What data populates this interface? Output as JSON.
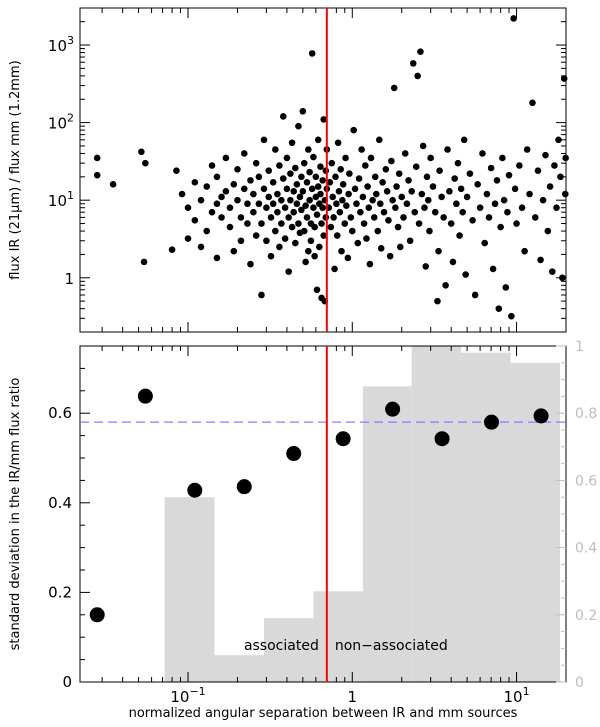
{
  "chart_data": [
    {
      "type": "scatter",
      "ylabel": "flux IR (21μm) / flux mm (1.2mm)",
      "xscale": "log",
      "yscale": "log",
      "xlim": [
        0.022,
        20
      ],
      "ylim": [
        0.2,
        3000
      ],
      "x_ticks": [
        {
          "v": 0.1,
          "label": "10",
          "exp": "−1"
        },
        {
          "v": 1,
          "label": "1",
          "exp": ""
        },
        {
          "v": 10,
          "label": "10",
          "exp": "1"
        }
      ],
      "y_ticks": [
        {
          "v": 1,
          "label": "1",
          "exp": ""
        },
        {
          "v": 10,
          "label": "10",
          "exp": "1"
        },
        {
          "v": 100,
          "label": "10",
          "exp": "2"
        },
        {
          "v": 1000,
          "label": "10",
          "exp": "3"
        }
      ],
      "vline_x": 0.7,
      "vline_color": "#ff0000",
      "points": [
        [
          0.028,
          35
        ],
        [
          0.028,
          21
        ],
        [
          0.035,
          16
        ],
        [
          0.052,
          42
        ],
        [
          0.055,
          30
        ],
        [
          0.054,
          1.6
        ],
        [
          0.08,
          2.3
        ],
        [
          0.085,
          24
        ],
        [
          0.092,
          12
        ],
        [
          0.1,
          8
        ],
        [
          0.1,
          3.2
        ],
        [
          0.11,
          17
        ],
        [
          0.11,
          5.5
        ],
        [
          0.12,
          2.5
        ],
        [
          0.12,
          10
        ],
        [
          0.13,
          15
        ],
        [
          0.13,
          4
        ],
        [
          0.14,
          28
        ],
        [
          0.14,
          7
        ],
        [
          0.15,
          20
        ],
        [
          0.15,
          9
        ],
        [
          0.15,
          1.8
        ],
        [
          0.16,
          11
        ],
        [
          0.16,
          6
        ],
        [
          0.17,
          35
        ],
        [
          0.17,
          13
        ],
        [
          0.18,
          4.5
        ],
        [
          0.18,
          8
        ],
        [
          0.19,
          16
        ],
        [
          0.19,
          2.2
        ],
        [
          0.2,
          10
        ],
        [
          0.2,
          25
        ],
        [
          0.21,
          6
        ],
        [
          0.21,
          3
        ],
        [
          0.22,
          14
        ],
        [
          0.22,
          40
        ],
        [
          0.23,
          9
        ],
        [
          0.23,
          5
        ],
        [
          0.24,
          18
        ],
        [
          0.24,
          1.5
        ],
        [
          0.25,
          12
        ],
        [
          0.25,
          7
        ],
        [
          0.26,
          3.5
        ],
        [
          0.26,
          30
        ],
        [
          0.27,
          9
        ],
        [
          0.27,
          20
        ],
        [
          0.28,
          0.6
        ],
        [
          0.28,
          5
        ],
        [
          0.29,
          14
        ],
        [
          0.29,
          60
        ],
        [
          0.3,
          8
        ],
        [
          0.3,
          3
        ],
        [
          0.31,
          24
        ],
        [
          0.31,
          11
        ],
        [
          0.32,
          6
        ],
        [
          0.32,
          1.9
        ],
        [
          0.33,
          17
        ],
        [
          0.33,
          9
        ],
        [
          0.34,
          45
        ],
        [
          0.34,
          4
        ],
        [
          0.35,
          12
        ],
        [
          0.35,
          7
        ],
        [
          0.36,
          28
        ],
        [
          0.36,
          2.5
        ],
        [
          0.37,
          10
        ],
        [
          0.37,
          5
        ],
        [
          0.38,
          19
        ],
        [
          0.38,
          120
        ],
        [
          0.39,
          8
        ],
        [
          0.39,
          3.2
        ],
        [
          0.4,
          14
        ],
        [
          0.4,
          35
        ],
        [
          0.41,
          6
        ],
        [
          0.41,
          1.2
        ],
        [
          0.42,
          22
        ],
        [
          0.42,
          10
        ],
        [
          0.43,
          4.5
        ],
        [
          0.43,
          55
        ],
        [
          0.44,
          13
        ],
        [
          0.44,
          7
        ],
        [
          0.45,
          26
        ],
        [
          0.45,
          2.8
        ],
        [
          0.46,
          9
        ],
        [
          0.46,
          16
        ],
        [
          0.47,
          5
        ],
        [
          0.47,
          90
        ],
        [
          0.48,
          11
        ],
        [
          0.48,
          3.8
        ],
        [
          0.49,
          20
        ],
        [
          0.49,
          7.5
        ],
        [
          0.5,
          140
        ],
        [
          0.5,
          13
        ],
        [
          0.51,
          4
        ],
        [
          0.51,
          30
        ],
        [
          0.52,
          8.5
        ],
        [
          0.52,
          1.6
        ],
        [
          0.53,
          17
        ],
        [
          0.53,
          6
        ],
        [
          0.54,
          2.2
        ],
        [
          0.54,
          45
        ],
        [
          0.55,
          10
        ],
        [
          0.55,
          23
        ],
        [
          0.56,
          5
        ],
        [
          0.56,
          3
        ],
        [
          0.57,
          14
        ],
        [
          0.57,
          780
        ],
        [
          0.58,
          8
        ],
        [
          0.58,
          36
        ],
        [
          0.59,
          4.5
        ],
        [
          0.59,
          1.9
        ],
        [
          0.6,
          11
        ],
        [
          0.6,
          20
        ],
        [
          0.61,
          6.5
        ],
        [
          0.61,
          0.7
        ],
        [
          0.62,
          15
        ],
        [
          0.62,
          60
        ],
        [
          0.63,
          9
        ],
        [
          0.63,
          2.5
        ],
        [
          0.64,
          27
        ],
        [
          0.64,
          12
        ],
        [
          0.65,
          5
        ],
        [
          0.65,
          0.55
        ],
        [
          0.66,
          8
        ],
        [
          0.66,
          18
        ],
        [
          0.67,
          110
        ],
        [
          0.67,
          3.5
        ],
        [
          0.68,
          10
        ],
        [
          0.68,
          0.5
        ],
        [
          0.69,
          24
        ],
        [
          0.69,
          6
        ],
        [
          0.7,
          45
        ],
        [
          0.7,
          14
        ],
        [
          0.72,
          8
        ],
        [
          0.73,
          17
        ],
        [
          0.74,
          4.5
        ],
        [
          0.75,
          30
        ],
        [
          0.76,
          11
        ],
        [
          0.77,
          6
        ],
        [
          0.78,
          1.3
        ],
        [
          0.79,
          20
        ],
        [
          0.8,
          9
        ],
        [
          0.81,
          3.5
        ],
        [
          0.82,
          55
        ],
        [
          0.83,
          13
        ],
        [
          0.84,
          7
        ],
        [
          0.85,
          25
        ],
        [
          0.86,
          2.2
        ],
        [
          0.87,
          10
        ],
        [
          0.88,
          16
        ],
        [
          0.9,
          5
        ],
        [
          0.91,
          35
        ],
        [
          0.92,
          8.5
        ],
        [
          0.94,
          1.8
        ],
        [
          0.95,
          12
        ],
        [
          0.96,
          22
        ],
        [
          0.98,
          6
        ],
        [
          1.0,
          4
        ],
        [
          1.02,
          80
        ],
        [
          1.04,
          14
        ],
        [
          1.06,
          9
        ],
        [
          1.08,
          2.8
        ],
        [
          1.1,
          19
        ],
        [
          1.12,
          7
        ],
        [
          1.14,
          45
        ],
        [
          1.16,
          11
        ],
        [
          1.18,
          5
        ],
        [
          1.2,
          28
        ],
        [
          1.22,
          3.2
        ],
        [
          1.24,
          15
        ],
        [
          1.26,
          8
        ],
        [
          1.28,
          1.5
        ],
        [
          1.3,
          35
        ],
        [
          1.33,
          10
        ],
        [
          1.36,
          6
        ],
        [
          1.38,
          20
        ],
        [
          1.4,
          12
        ],
        [
          1.43,
          4
        ],
        [
          1.46,
          60
        ],
        [
          1.48,
          9
        ],
        [
          1.5,
          2.4
        ],
        [
          1.53,
          17
        ],
        [
          1.56,
          7
        ],
        [
          1.6,
          25
        ],
        [
          1.63,
          13
        ],
        [
          1.66,
          5.5
        ],
        [
          1.7,
          1.9
        ],
        [
          1.73,
          32
        ],
        [
          1.76,
          10
        ],
        [
          1.8,
          280
        ],
        [
          1.83,
          8
        ],
        [
          1.86,
          15
        ],
        [
          1.9,
          4.5
        ],
        [
          1.93,
          22
        ],
        [
          1.96,
          2.5
        ],
        [
          2.0,
          11
        ],
        [
          2.05,
          6
        ],
        [
          2.1,
          40
        ],
        [
          2.15,
          9
        ],
        [
          2.2,
          18
        ],
        [
          2.25,
          3
        ],
        [
          2.3,
          13
        ],
        [
          2.35,
          580
        ],
        [
          2.4,
          7
        ],
        [
          2.45,
          27
        ],
        [
          2.5,
          400
        ],
        [
          2.55,
          5
        ],
        [
          2.6,
          820
        ],
        [
          2.65,
          12
        ],
        [
          2.7,
          50
        ],
        [
          2.75,
          8
        ],
        [
          2.8,
          1.4
        ],
        [
          2.85,
          20
        ],
        [
          2.9,
          10
        ],
        [
          2.95,
          4
        ],
        [
          3.0,
          35
        ],
        [
          3.1,
          15
        ],
        [
          3.2,
          7
        ],
        [
          3.3,
          0.5
        ],
        [
          3.35,
          2.2
        ],
        [
          3.4,
          24
        ],
        [
          3.5,
          11
        ],
        [
          3.6,
          6
        ],
        [
          3.7,
          0.8
        ],
        [
          3.8,
          45
        ],
        [
          3.9,
          13
        ],
        [
          4.0,
          5
        ],
        [
          4.1,
          1.6
        ],
        [
          4.2,
          19
        ],
        [
          4.3,
          9
        ],
        [
          4.4,
          30
        ],
        [
          4.5,
          3.5
        ],
        [
          4.6,
          14
        ],
        [
          4.7,
          7
        ],
        [
          4.8,
          60
        ],
        [
          4.9,
          1.1
        ],
        [
          5.0,
          11
        ],
        [
          5.2,
          22
        ],
        [
          5.4,
          5.5
        ],
        [
          5.6,
          0.6
        ],
        [
          5.8,
          16
        ],
        [
          6.0,
          8
        ],
        [
          6.2,
          40
        ],
        [
          6.4,
          2.8
        ],
        [
          6.6,
          12
        ],
        [
          6.8,
          6
        ],
        [
          7.0,
          26
        ],
        [
          7.2,
          1.3
        ],
        [
          7.4,
          9
        ],
        [
          7.6,
          18
        ],
        [
          7.8,
          0.4
        ],
        [
          8.0,
          4.5
        ],
        [
          8.2,
          35
        ],
        [
          8.4,
          10
        ],
        [
          8.6,
          0.75
        ],
        [
          8.8,
          7
        ],
        [
          9.0,
          21
        ],
        [
          9.3,
          0.32
        ],
        [
          9.6,
          2200
        ],
        [
          9.8,
          14
        ],
        [
          10.0,
          5
        ],
        [
          10.4,
          28
        ],
        [
          10.8,
          8
        ],
        [
          11.2,
          2.2
        ],
        [
          11.6,
          45
        ],
        [
          12.0,
          12
        ],
        [
          12.5,
          180
        ],
        [
          13.0,
          6
        ],
        [
          13.5,
          24
        ],
        [
          14.0,
          1.7
        ],
        [
          14.5,
          10
        ],
        [
          15.0,
          38
        ],
        [
          15.5,
          4
        ],
        [
          16.0,
          15
        ],
        [
          16.5,
          1.2
        ],
        [
          17.0,
          28
        ],
        [
          17.5,
          8
        ],
        [
          18.0,
          60
        ],
        [
          18.5,
          20
        ],
        [
          19.0,
          1.0
        ],
        [
          19.5,
          370
        ],
        [
          19.8,
          12
        ],
        [
          19.9,
          35
        ]
      ]
    },
    {
      "type": "bar+scatter",
      "xlabel": "normalized angular separation between IR and mm sources",
      "ylabel": "standard deviation in the IR/mm flux ratio",
      "xscale": "log",
      "xlim": [
        0.022,
        20
      ],
      "ylim": [
        0,
        0.75
      ],
      "ylim_right": [
        0,
        1
      ],
      "x_ticks": [
        {
          "v": 0.1,
          "label": "10",
          "exp": "−1"
        },
        {
          "v": 1,
          "label": "1",
          "exp": ""
        },
        {
          "v": 10,
          "label": "10",
          "exp": "1"
        }
      ],
      "y_ticks": [
        {
          "v": 0,
          "label": "0"
        },
        {
          "v": 0.2,
          "label": "0.2"
        },
        {
          "v": 0.4,
          "label": "0.4"
        },
        {
          "v": 0.6,
          "label": "0.6"
        }
      ],
      "y_ticks_right": [
        {
          "v": 0,
          "label": "0"
        },
        {
          "v": 0.2,
          "label": "0.2"
        },
        {
          "v": 0.4,
          "label": "0.4"
        },
        {
          "v": 0.6,
          "label": "0.6"
        },
        {
          "v": 0.8,
          "label": "0.8"
        },
        {
          "v": 1,
          "label": "1"
        }
      ],
      "histogram_color": "#d9d9d9",
      "histogram": [
        {
          "x0": 0.072,
          "x1": 0.145,
          "value": 0.55
        },
        {
          "x0": 0.145,
          "x1": 0.29,
          "value": 0.08
        },
        {
          "x0": 0.29,
          "x1": 0.58,
          "value": 0.19
        },
        {
          "x0": 0.58,
          "x1": 1.16,
          "value": 0.27
        },
        {
          "x0": 1.16,
          "x1": 2.3,
          "value": 0.88
        },
        {
          "x0": 2.3,
          "x1": 4.6,
          "value": 1.0
        },
        {
          "x0": 4.6,
          "x1": 9.2,
          "value": 0.98
        },
        {
          "x0": 9.2,
          "x1": 18.4,
          "value": 0.95
        }
      ],
      "points": [
        [
          0.028,
          0.15
        ],
        [
          0.055,
          0.638
        ],
        [
          0.11,
          0.428
        ],
        [
          0.22,
          0.436
        ],
        [
          0.44,
          0.51
        ],
        [
          0.88,
          0.543
        ],
        [
          1.76,
          0.609
        ],
        [
          3.52,
          0.543
        ],
        [
          7.04,
          0.58
        ],
        [
          14.1,
          0.594
        ]
      ],
      "hline_y": 0.58,
      "hline_color": "#8080ff",
      "vline_x": 0.7,
      "vline_color": "#ff0000",
      "annotations": {
        "left": "associated",
        "right": "non−associated"
      }
    }
  ]
}
